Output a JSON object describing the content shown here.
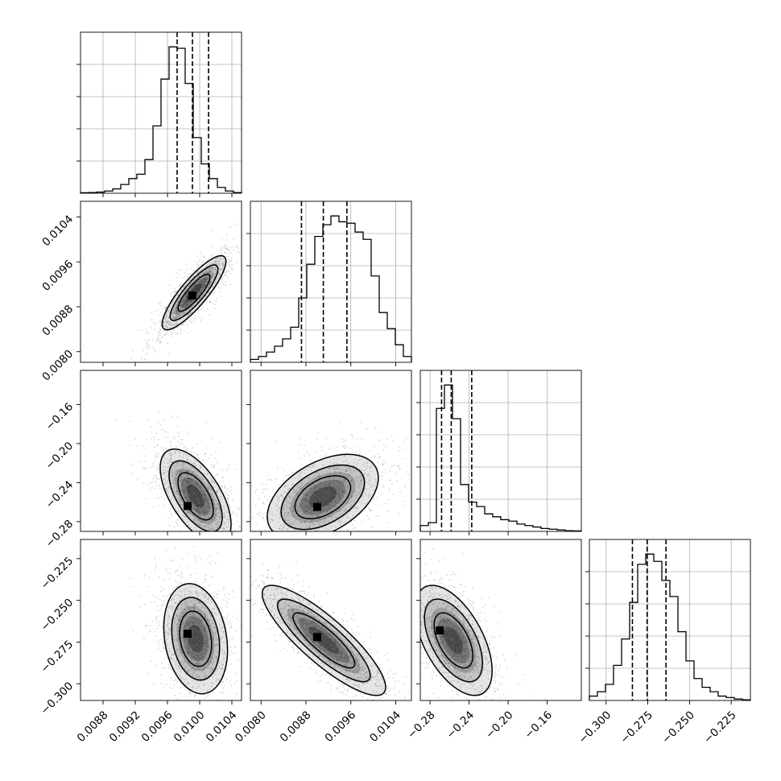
{
  "chart_data": {
    "type": "corner",
    "title": "",
    "n_parameters": 4,
    "parameters": [
      {
        "label": "",
        "range": [
          0.00852,
          0.01052
        ],
        "median": 0.00991,
        "quantiles_16_50_84": [
          0.00972,
          0.00991,
          0.01011
        ],
        "ticks": [
          "0.0088",
          "0.0092",
          "0.0096",
          "0.0100",
          "0.0104"
        ],
        "tick_values": [
          0.0088,
          0.0092,
          0.0096,
          0.01,
          0.0104
        ],
        "histogram": {
          "bin_edges_start": 0.00852,
          "bin_width": 0.0001,
          "counts": [
            0.3,
            0.5,
            0.8,
            1.5,
            3,
            6,
            10,
            13,
            23,
            46,
            78,
            100,
            99,
            75,
            38,
            20,
            10,
            4,
            1.5,
            0.5
          ]
        }
      },
      {
        "label": "",
        "range": [
          0.00781,
          0.01068
        ],
        "median": 0.00911,
        "quantiles_16_50_84": [
          0.00872,
          0.00911,
          0.00953
        ],
        "ticks": [
          "0.0080",
          "0.0088",
          "0.0096",
          "0.0104"
        ],
        "tick_values": [
          0.008,
          0.0088,
          0.0096,
          0.0104
        ],
        "histogram": {
          "bin_edges_start": 0.00781,
          "bin_width": 0.0001435,
          "counts": [
            2,
            4,
            7,
            11,
            16,
            24,
            44,
            67,
            86,
            94,
            100,
            96,
            95,
            89,
            84,
            59,
            34,
            23,
            12,
            4
          ]
        }
      },
      {
        "label": "",
        "range": [
          -0.29,
          -0.125
        ],
        "median": -0.2583,
        "quantiles_16_50_84": [
          -0.2682,
          -0.2583,
          -0.2373
        ],
        "ticks": [
          "−0.28",
          "−0.24",
          "−0.20",
          "−0.16"
        ],
        "tick_values": [
          -0.28,
          -0.24,
          -0.2,
          -0.16
        ],
        "histogram": {
          "bin_edges_start": -0.29,
          "bin_width": 0.00825,
          "counts": [
            4,
            6,
            84,
            100,
            77,
            32,
            20,
            17,
            12,
            10,
            8,
            7,
            5,
            4,
            3,
            2,
            1.5,
            1,
            0.5,
            0.3
          ]
        }
      },
      {
        "label": "",
        "range": [
          -0.31,
          -0.2135
        ],
        "median": -0.2754,
        "quantiles_16_50_84": [
          -0.2842,
          -0.2754,
          -0.2641
        ],
        "ticks": [
          "−0.300",
          "−0.275",
          "−0.250",
          "−0.225"
        ],
        "tick_values": [
          -0.3,
          -0.275,
          -0.25,
          -0.225
        ],
        "histogram": {
          "bin_edges_start": -0.31,
          "bin_width": 0.004825,
          "counts": [
            3,
            6,
            11,
            24,
            42,
            67,
            93,
            100,
            95,
            82,
            71,
            47,
            27,
            15,
            9,
            6,
            3,
            2,
            1,
            0.5
          ]
        }
      }
    ],
    "pairs": [
      {
        "x_param": 0,
        "y_param": 1,
        "mean": [
          0.00993,
          0.00905
        ],
        "sd": [
          0.00018,
          0.0003
        ],
        "rho": 0.85,
        "peak": [
          0.00991,
          0.009
        ]
      },
      {
        "x_param": 0,
        "y_param": 2,
        "mean": [
          0.00995,
          -0.254
        ],
        "sd": [
          0.0002,
          0.022
        ],
        "rho": -0.6,
        "peak": [
          0.00985,
          -0.264
        ]
      },
      {
        "x_param": 1,
        "y_param": 2,
        "mean": [
          0.0091,
          -0.255
        ],
        "sd": [
          0.00045,
          0.02
        ],
        "rho": 0.45,
        "peak": [
          0.009,
          -0.265
        ]
      },
      {
        "x_param": 0,
        "y_param": 3,
        "mean": [
          0.00995,
          -0.273
        ],
        "sd": [
          0.00018,
          0.015
        ],
        "rho": -0.2,
        "peak": [
          0.00985,
          -0.27
        ]
      },
      {
        "x_param": 1,
        "y_param": 3,
        "mean": [
          0.00912,
          -0.274
        ],
        "sd": [
          0.0005,
          0.015
        ],
        "rho": -0.85,
        "peak": [
          0.009,
          -0.272
        ]
      },
      {
        "x_param": 2,
        "y_param": 3,
        "mean": [
          -0.256,
          -0.274
        ],
        "sd": [
          0.018,
          0.015
        ],
        "rho": -0.55,
        "peak": [
          -0.27,
          -0.268
        ]
      }
    ],
    "contour_levels_sigma": [
      1,
      1.5,
      2
    ],
    "quantiles": [
      0.16,
      0.5,
      0.84
    ],
    "grid": true,
    "colors": {
      "samples": "#777777",
      "contours": "#000000",
      "density_shade": "#000000",
      "grid": "#b0b0b0"
    }
  }
}
